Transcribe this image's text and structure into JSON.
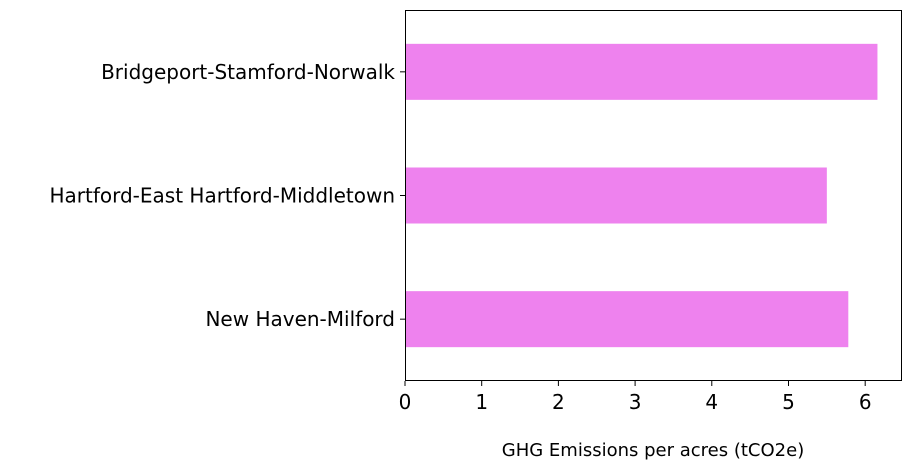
{
  "chart_data": {
    "type": "bar",
    "orientation": "horizontal",
    "categories": [
      "Bridgeport-Stamford-Norwalk",
      "Hartford-East Hartford-Middletown",
      "New Haven-Milford"
    ],
    "values": [
      6.16,
      5.5,
      5.78
    ],
    "xlabel": "GHG Emissions per acres (tCO2e)",
    "ylabel": "",
    "xlim": [
      0,
      6.48
    ],
    "xticks": [
      0,
      1,
      2,
      3,
      4,
      5,
      6
    ],
    "bar_color": "#ee82ee",
    "grid": false
  }
}
